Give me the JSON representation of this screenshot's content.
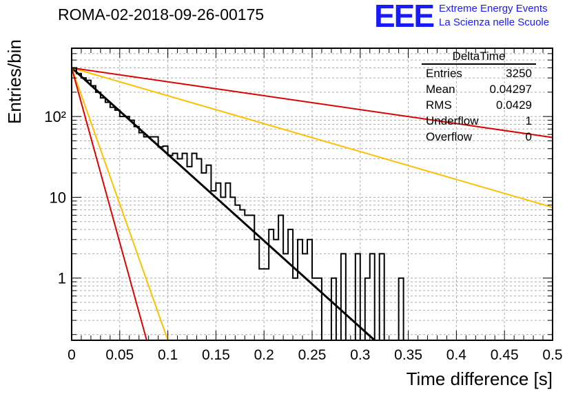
{
  "header": {
    "run_title": "ROMA-02-2018-09-26-00175",
    "logo_text": "EEE",
    "logo_line1": "Extreme Energy Events",
    "logo_line2": "La Scienza nelle Scuole"
  },
  "stats_box": {
    "title": "DeltaTime",
    "rows": [
      {
        "label": "Entries",
        "value": "3250"
      },
      {
        "label": "Mean",
        "value": "0.04297"
      },
      {
        "label": "RMS",
        "value": "0.0429"
      },
      {
        "label": "Underflow",
        "value": "1"
      },
      {
        "label": "Overflow",
        "value": "0"
      }
    ]
  },
  "chart_data": {
    "type": "histogram",
    "ylabel": "Entries/bin",
    "xlabel": "Time difference [s]",
    "xlim": [
      0,
      0.5
    ],
    "ylim": [
      0.17,
      700
    ],
    "y_scale": "log",
    "grid": true,
    "x_ticks": [
      "0",
      "0.05",
      "0.1",
      "0.15",
      "0.2",
      "0.25",
      "0.3",
      "0.35",
      "0.4",
      "0.45",
      "0.5"
    ],
    "y_ticks": [
      {
        "value": 1,
        "label": "1"
      },
      {
        "value": 10,
        "label": "10"
      },
      {
        "value": 100,
        "label": "10²"
      }
    ],
    "bin_width": 0.005,
    "histogram_counts": [
      400,
      340,
      300,
      280,
      240,
      200,
      170,
      150,
      130,
      120,
      100,
      100,
      90,
      75,
      63,
      56,
      56,
      56,
      42,
      43,
      33,
      35,
      30,
      35,
      24,
      35,
      30,
      20,
      25,
      12,
      15,
      10,
      15,
      10,
      8,
      7,
      6,
      6,
      3,
      1.3,
      1.3,
      4,
      3,
      6,
      2,
      4,
      1,
      3,
      2,
      3,
      1,
      1,
      0.1,
      0.1,
      1,
      0.1,
      2,
      0.1,
      0.1,
      2,
      0.1,
      1,
      2,
      0.1,
      2,
      0.1,
      0.1,
      0.1,
      0.1,
      0.1,
      0.1,
      0.1,
      0.1,
      0.1,
      0.1,
      0.1,
      0.1,
      0.1,
      0.1,
      0.1,
      0.1,
      0.1,
      0.1,
      0.1,
      0.1,
      0.1,
      0.1,
      0.1,
      0.1,
      0.1,
      0.1,
      0.1,
      0.1,
      0.1,
      0.1,
      0.1,
      0.1,
      0.1,
      0.1,
      0.1
    ],
    "extra_bins": [
      {
        "x0": 0.34,
        "count": 1
      }
    ],
    "fit_lines": [
      {
        "color": "#000000",
        "width": 3,
        "points": [
          [
            0,
            400
          ],
          [
            0.315,
            0.17
          ]
        ]
      },
      {
        "color": "#ffc000",
        "width": 2,
        "points": [
          [
            0,
            400
          ],
          [
            0.5,
            7.5
          ]
        ]
      },
      {
        "color": "#ffc000",
        "width": 2,
        "points": [
          [
            0,
            400
          ],
          [
            0.1,
            0.17
          ]
        ]
      },
      {
        "color": "#dd0000",
        "width": 2,
        "points": [
          [
            0,
            400
          ],
          [
            0.5,
            55
          ]
        ]
      },
      {
        "color": "#dd0000",
        "width": 2,
        "points": [
          [
            0,
            400
          ],
          [
            0.078,
            0.17
          ]
        ]
      }
    ]
  }
}
